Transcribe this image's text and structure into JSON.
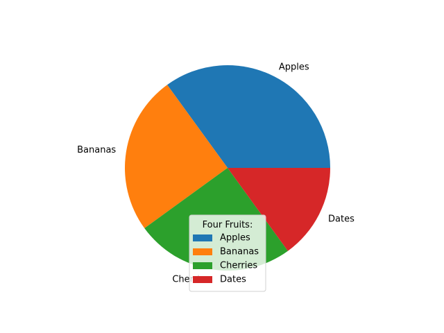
{
  "chart_data": {
    "type": "pie",
    "categories": [
      "Apples",
      "Bananas",
      "Cherries",
      "Dates"
    ],
    "values": [
      35,
      25,
      25,
      15
    ],
    "colors": [
      "#1f77b4",
      "#ff7f0e",
      "#2ca02c",
      "#d62728"
    ],
    "legend": {
      "title": "Four Fruits:",
      "placement": "lower-center",
      "entries": [
        "Apples",
        "Bananas",
        "Cherries",
        "Dates"
      ]
    }
  }
}
